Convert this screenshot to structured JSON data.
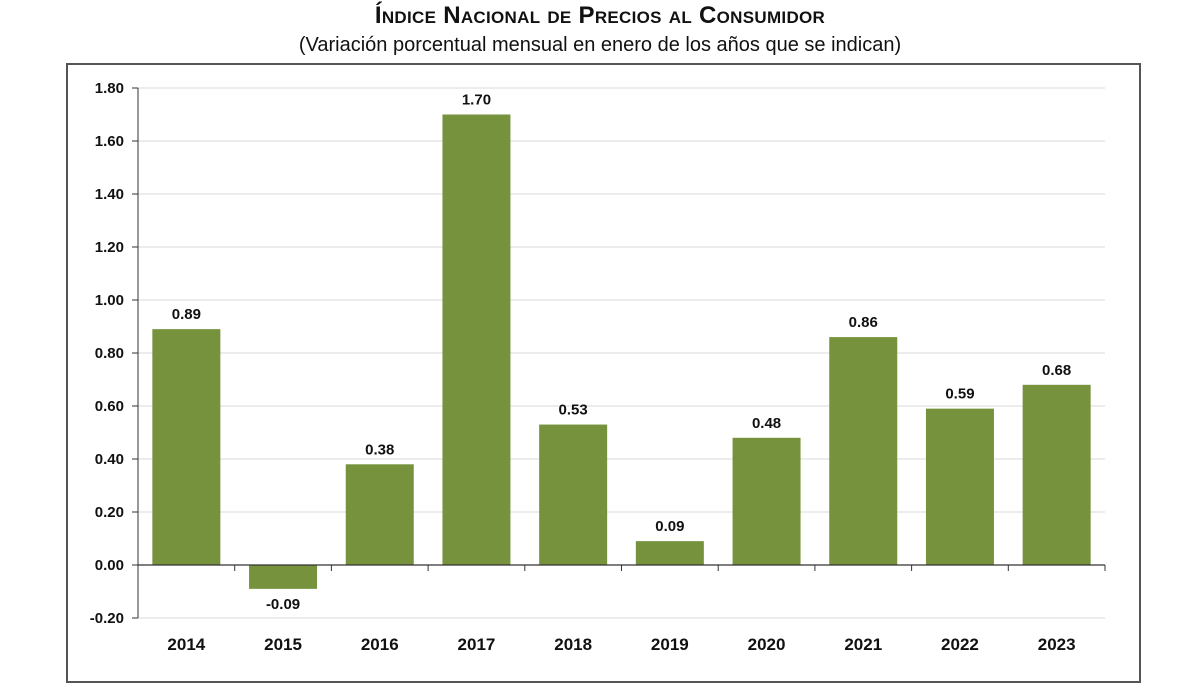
{
  "header": {
    "title": "Índice Nacional de Precios al Consumidor",
    "subtitle": "(Variación porcentual mensual en enero de los años que se indican)"
  },
  "colors": {
    "bar": "#76923c",
    "grid": "#d9d9d9",
    "axis": "#333333"
  },
  "chart_data": {
    "type": "bar",
    "title": "Índice Nacional de Precios al Consumidor",
    "subtitle": "(Variación porcentual mensual en enero de los años que se indican)",
    "xlabel": "",
    "ylabel": "",
    "categories": [
      "2014",
      "2015",
      "2016",
      "2017",
      "2018",
      "2019",
      "2020",
      "2021",
      "2022",
      "2023"
    ],
    "values": [
      0.89,
      -0.09,
      0.38,
      1.7,
      0.53,
      0.09,
      0.48,
      0.86,
      0.59,
      0.68
    ],
    "data_labels": [
      "0.89",
      "-0.09",
      "0.38",
      "1.70",
      "0.53",
      "0.09",
      "0.48",
      "0.86",
      "0.59",
      "0.68"
    ],
    "ylim": [
      -0.2,
      1.8
    ],
    "yticks": [
      -0.2,
      0.0,
      0.2,
      0.4,
      0.6,
      0.8,
      1.0,
      1.2,
      1.4,
      1.6,
      1.8
    ],
    "ytick_labels": [
      "-0.20",
      "0.00",
      "0.20",
      "0.40",
      "0.60",
      "0.80",
      "1.00",
      "1.20",
      "1.40",
      "1.60",
      "1.80"
    ],
    "grid": true,
    "legend": "none"
  }
}
